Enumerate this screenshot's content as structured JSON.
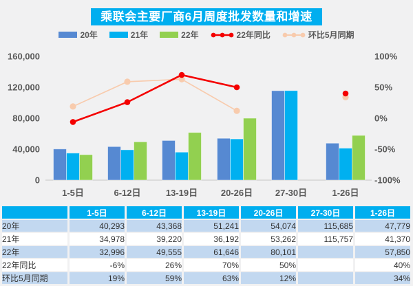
{
  "title": "乘联会主要厂商6月周度批发数量和增速",
  "colors": {
    "page_bg": "#F1F1F2",
    "accent_cyan": "#00AEEF",
    "bar_2020": "#5689D2",
    "bar_2021": "#00B0F0",
    "bar_2022": "#92D050",
    "line_yoy": "#F40000",
    "line_mom": "#F8CBAD",
    "table_alt_row": "#C2D8F0",
    "axis_text": "#595959",
    "axis_line": "#DBDBDB"
  },
  "legend": {
    "items": [
      {
        "label": "20年",
        "marker": "bar",
        "color_key": "bar_2020"
      },
      {
        "label": "21年",
        "marker": "bar",
        "color_key": "bar_2021"
      },
      {
        "label": "22年",
        "marker": "bar",
        "color_key": "bar_2022"
      },
      {
        "label": "22年同比",
        "marker": "line-dots",
        "color_key": "line_yoy"
      },
      {
        "label": "环比5月同期",
        "marker": "line-dots",
        "color_key": "line_mom"
      }
    ]
  },
  "chart_data": {
    "type": "combo-bar-line",
    "categories": [
      "1-5日",
      "6-12日",
      "13-19日",
      "20-26日",
      "27-30日",
      "1-26日"
    ],
    "bar_series": [
      {
        "name": "20年",
        "values": [
          40293,
          43368,
          51241,
          54074,
          115685,
          47779
        ]
      },
      {
        "name": "21年",
        "values": [
          34978,
          39220,
          36192,
          53262,
          115757,
          41370
        ]
      },
      {
        "name": "22年",
        "values": [
          32996,
          49555,
          61646,
          80101,
          null,
          57850
        ]
      }
    ],
    "line_series": [
      {
        "name": "22年同比",
        "unit": "%",
        "values": [
          -6,
          26,
          70,
          50,
          null,
          40
        ]
      },
      {
        "name": "环比5月同期",
        "unit": "%",
        "values": [
          19,
          59,
          63,
          12,
          null,
          34
        ]
      }
    ],
    "left_axis": {
      "min": 0,
      "max": 160000,
      "ticks": [
        "160,000",
        "120,000",
        "80,000",
        "40,000",
        "0"
      ]
    },
    "right_axis": {
      "min": -100,
      "max": 100,
      "ticks": [
        "100%",
        "50%",
        "0%",
        "-50%",
        "-100%"
      ]
    },
    "grid": false,
    "legend_position": "top"
  },
  "table": {
    "header": [
      "",
      "1-5日",
      "6-12日",
      "13-19日",
      "20-26日",
      "27-30日",
      "1-26日"
    ],
    "rows": [
      {
        "label": "20年",
        "cells": [
          "40,293",
          "43,368",
          "51,241",
          "54,074",
          "115,685",
          "47,779"
        ]
      },
      {
        "label": "21年",
        "cells": [
          "34,978",
          "39,220",
          "36,192",
          "53,262",
          "115,757",
          "41,370"
        ]
      },
      {
        "label": "22年",
        "cells": [
          "32,996",
          "49,555",
          "61,646",
          "80,101",
          "",
          "57,850"
        ]
      },
      {
        "label": "22年同比",
        "cells": [
          "-6%",
          "26%",
          "70%",
          "50%",
          "",
          "40%"
        ]
      },
      {
        "label": "环比5月同期",
        "cells": [
          "19%",
          "59%",
          "63%",
          "12%",
          "",
          "34%"
        ]
      }
    ]
  }
}
